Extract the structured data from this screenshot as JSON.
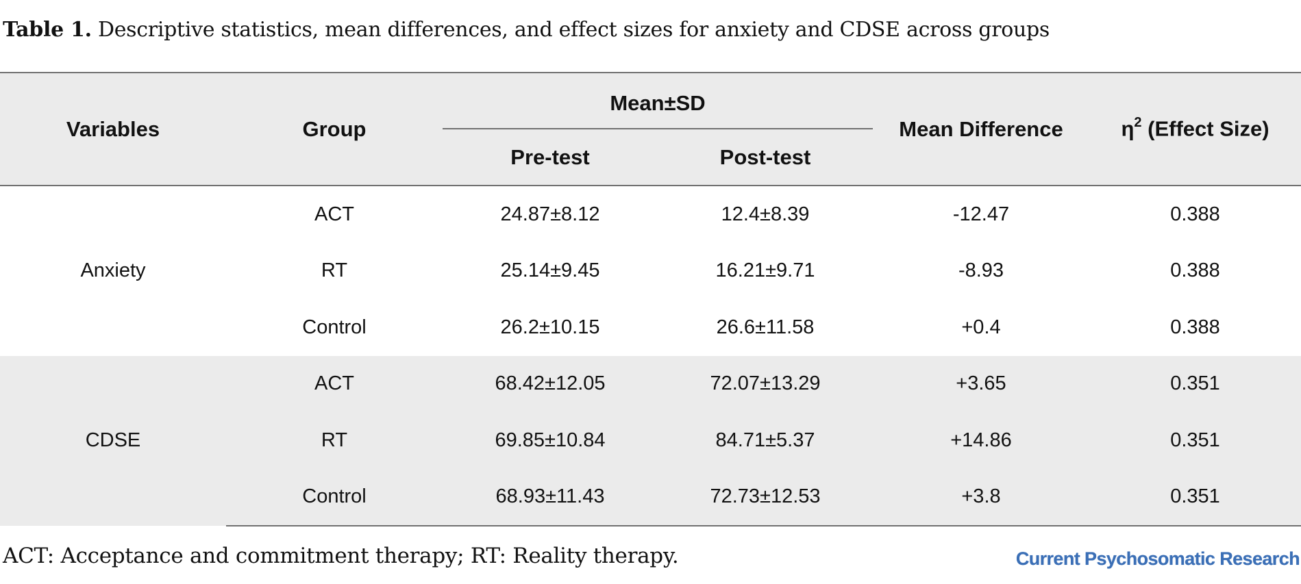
{
  "caption": {
    "label": "Table 1.",
    "text": "Descriptive statistics, mean differences, and effect sizes for anxiety and CDSE across groups"
  },
  "table": {
    "headers": {
      "variables": "Variables",
      "group": "Group",
      "mean_sd": "Mean±SD",
      "pre_test": "Pre-test",
      "post_test": "Post-test",
      "mean_difference": "Mean Difference",
      "effect_size_prefix": "η",
      "effect_size_sup": "2",
      "effect_size_suffix": " (Effect Size)"
    },
    "sections": [
      {
        "variable": "Anxiety",
        "rows": [
          {
            "group": "ACT",
            "pre": "24.87±8.12",
            "post": "12.4±8.39",
            "diff": "-12.47",
            "eta": "0.388"
          },
          {
            "group": "RT",
            "pre": "25.14±9.45",
            "post": "16.21±9.71",
            "diff": "-8.93",
            "eta": "0.388"
          },
          {
            "group": "Control",
            "pre": "26.2±10.15",
            "post": "26.6±11.58",
            "diff": "+0.4",
            "eta": "0.388"
          }
        ]
      },
      {
        "variable": "CDSE",
        "rows": [
          {
            "group": "ACT",
            "pre": "68.42±12.05",
            "post": "72.07±13.29",
            "diff": "+3.65",
            "eta": "0.351"
          },
          {
            "group": "RT",
            "pre": "69.85±10.84",
            "post": "84.71±5.37",
            "diff": "+14.86",
            "eta": "0.351"
          },
          {
            "group": "Control",
            "pre": "68.93±11.43",
            "post": "72.73±12.53",
            "diff": "+3.8",
            "eta": "0.351"
          }
        ]
      }
    ]
  },
  "footnote": "ACT: Acceptance and commitment therapy; RT: Reality therapy.",
  "logo": "Current Psychosomatic Research",
  "colors": {
    "header_background": "#ebebeb",
    "rule": "#707070",
    "logo": "#3b6fb6"
  }
}
